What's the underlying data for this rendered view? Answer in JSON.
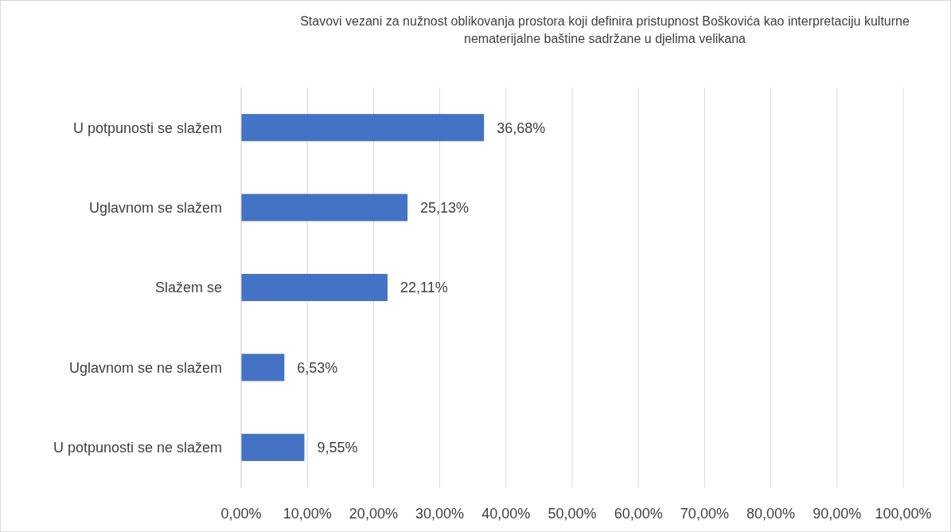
{
  "chart_data": {
    "type": "bar",
    "orientation": "horizontal",
    "title": "Stavovi vezani za nužnost oblikovanja prostora koji definira pristupnost Boškovića kao interpretaciju kulturne nematerijalne baštine sadržane u djelima velikana",
    "categories": [
      "U potpunosti se slažem",
      "Uglavnom se slažem",
      "Slažem se",
      "Uglavnom se ne slažem",
      "U potpunosti se ne slažem"
    ],
    "values": [
      36.68,
      25.13,
      22.11,
      6.53,
      9.55
    ],
    "value_labels": [
      "36,68%",
      "25,13%",
      "22,11%",
      "6,53%",
      "9,55%"
    ],
    "color": "#4472c4",
    "xlim": [
      0,
      100
    ],
    "xticks": [
      {
        "value": 0,
        "label": "0,00%"
      },
      {
        "value": 10,
        "label": "10,00%"
      },
      {
        "value": 20,
        "label": "20,00%"
      },
      {
        "value": 30,
        "label": "30,00%"
      },
      {
        "value": 40,
        "label": "40,00%"
      },
      {
        "value": 50,
        "label": "50,00%"
      },
      {
        "value": 60,
        "label": "60,00%"
      },
      {
        "value": 70,
        "label": "70,00%"
      },
      {
        "value": 80,
        "label": "80,00%"
      },
      {
        "value": 90,
        "label": "90,00%"
      },
      {
        "value": 100,
        "label": "100,00%"
      }
    ],
    "grid": "x"
  }
}
